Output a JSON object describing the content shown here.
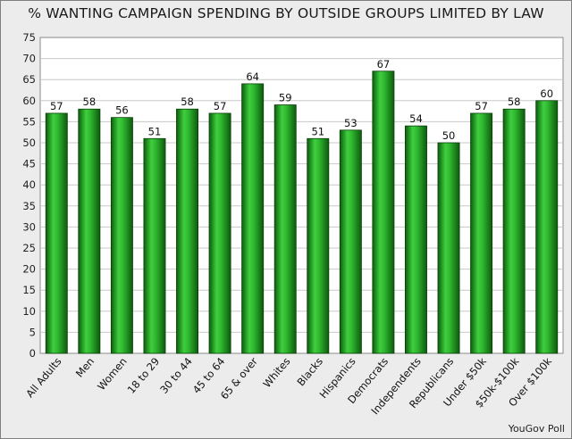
{
  "chart_data": {
    "type": "bar",
    "title": "% WANTING CAMPAIGN SPENDING BY OUTSIDE GROUPS LIMITED BY LAW",
    "xlabel": "",
    "ylabel": "",
    "ylim": [
      0,
      75
    ],
    "yticks": [
      0,
      5,
      10,
      15,
      20,
      25,
      30,
      35,
      40,
      45,
      50,
      55,
      60,
      65,
      70,
      75
    ],
    "grid": true,
    "categories": [
      "All Adults",
      "Men",
      "Women",
      "18 to 29",
      "30 to 44",
      "45 to 64",
      "65 & over",
      "Whites",
      "Blacks",
      "Hispanics",
      "Democrats",
      "Independents",
      "Republicans",
      "Under $50k",
      "$50k-$100k",
      "Over $100k"
    ],
    "values": [
      57,
      58,
      56,
      51,
      58,
      57,
      64,
      59,
      51,
      53,
      67,
      54,
      50,
      57,
      58,
      60
    ],
    "bar_color": "#1f9a1f",
    "source": "YouGov Poll"
  }
}
